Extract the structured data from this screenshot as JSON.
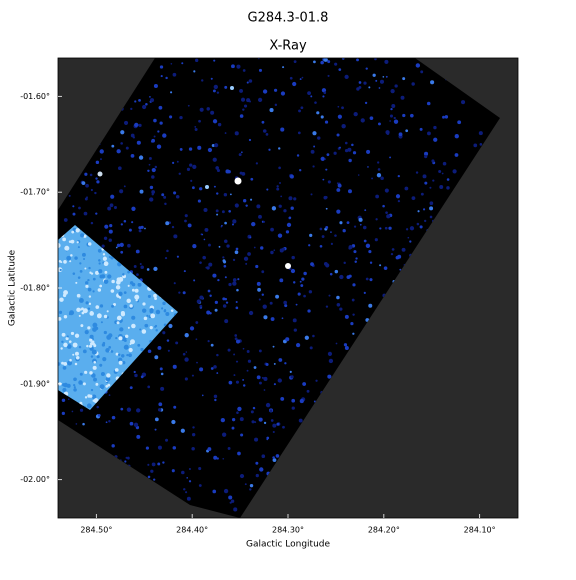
{
  "chart_data": {
    "type": "image",
    "title": "G284.3-01.8",
    "subtitle": "X-Ray",
    "x_label": "Galactic Longitude",
    "y_label": "Galactic Latitude",
    "xlim": [
      284.54,
      284.06
    ],
    "xticks": [
      {
        "value": 284.5,
        "label": "284.50°"
      },
      {
        "value": 284.4,
        "label": "284.40°"
      },
      {
        "value": 284.3,
        "label": "284.30°"
      },
      {
        "value": 284.2,
        "label": "284.20°"
      },
      {
        "value": 284.1,
        "label": "284.10°"
      }
    ],
    "ylim": [
      -2.04,
      -1.56
    ],
    "yticks": [
      {
        "value": -1.6,
        "label": "-01.60°"
      },
      {
        "value": -1.7,
        "label": "-01.70°"
      },
      {
        "value": -1.8,
        "label": "-01.80°"
      },
      {
        "value": -1.9,
        "label": "-01.90°"
      },
      {
        "value": -2.0,
        "label": "-02.00°"
      }
    ]
  }
}
